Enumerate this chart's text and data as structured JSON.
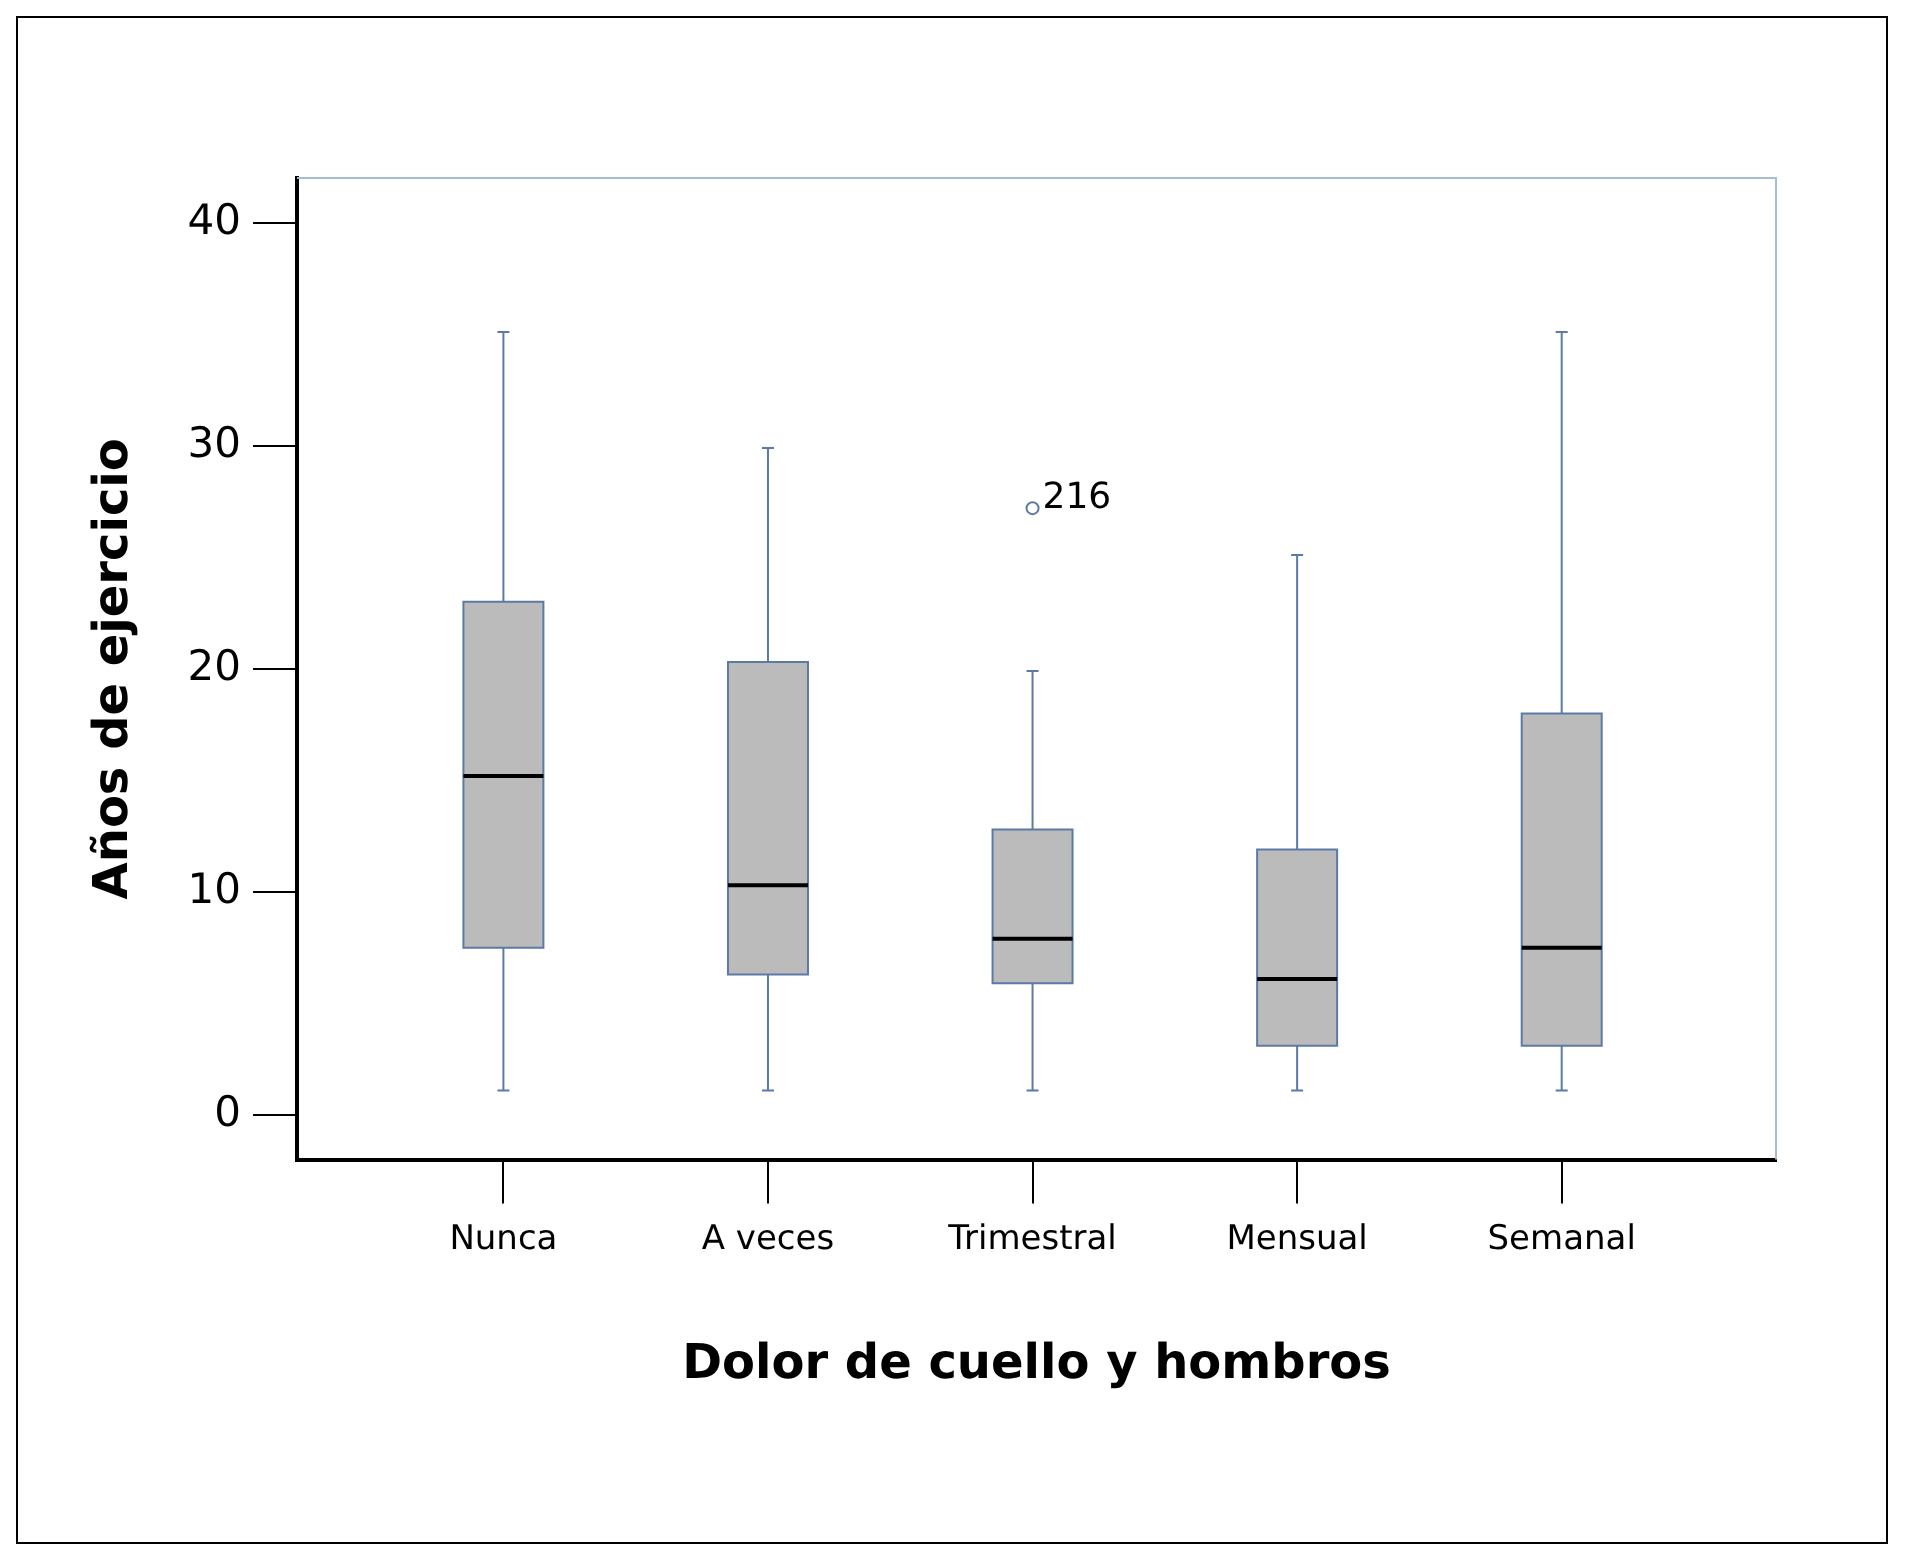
{
  "chart_data": {
    "type": "box",
    "xlabel": "Dolor de cuello y hombros",
    "ylabel": "Años de ejercicio",
    "categories": [
      "Nunca",
      "A veces",
      "Trimestral",
      "Mensual",
      "Semanal"
    ],
    "color": "#bbbbbb",
    "boxes": [
      {
        "low": 1.1,
        "q1": 7.5,
        "median": 15.2,
        "q3": 23.0,
        "high": 35.1
      },
      {
        "low": 1.1,
        "q1": 6.3,
        "median": 10.3,
        "q3": 20.3,
        "high": 29.9
      },
      {
        "low": 1.1,
        "q1": 5.9,
        "median": 7.9,
        "q3": 12.8,
        "high": 19.9,
        "outliers": [
          27.2
        ]
      },
      {
        "low": 1.1,
        "q1": 3.1,
        "median": 6.1,
        "q3": 11.9,
        "high": 25.1
      },
      {
        "low": 1.1,
        "q1": 3.1,
        "median": 7.5,
        "q3": 18.0,
        "high": 35.1
      }
    ],
    "ylim": [
      -2,
      42
    ],
    "yticks": [
      0,
      10,
      20,
      30,
      40
    ],
    "annotations": [
      "216"
    ]
  }
}
